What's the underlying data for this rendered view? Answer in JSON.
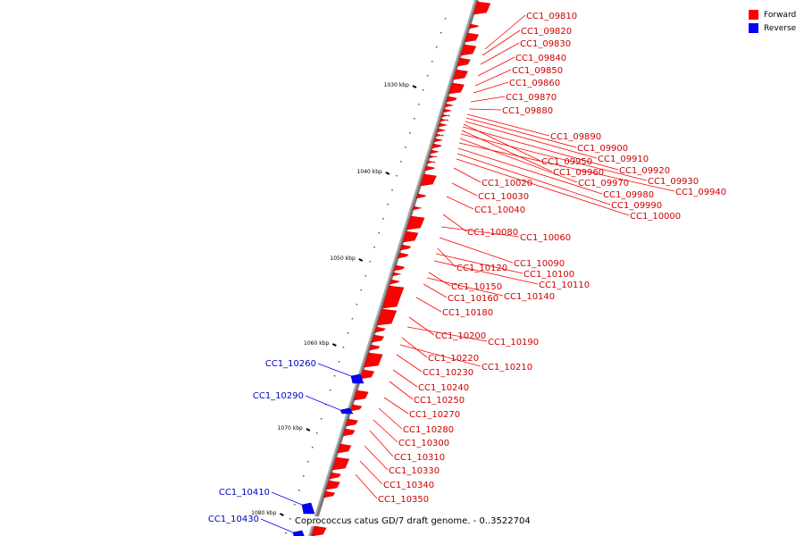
{
  "legend": {
    "forward": {
      "label": "Forward",
      "color": "#ff0000"
    },
    "reverse": {
      "label": "Reverse",
      "color": "#0000ff"
    }
  },
  "caption": "Coprococcus catus GD/7 draft genome. - 0..3522704",
  "ticks": [
    "1030 kbp",
    "1040 kbp",
    "1050 kbp",
    "1060 kbp",
    "1070 kbp",
    "1080 kbp"
  ],
  "forward_genes": [
    "CC1_09810",
    "CC1_09820",
    "CC1_09830",
    "CC1_09840",
    "CC1_09850",
    "CC1_09860",
    "CC1_09870",
    "CC1_09880",
    "CC1_09890",
    "CC1_09900",
    "CC1_09910",
    "CC1_09950",
    "CC1_09920",
    "CC1_09960",
    "CC1_09930",
    "CC1_09970",
    "CC1_09940",
    "CC1_09980",
    "CC1_09990",
    "CC1_10000",
    "CC1_10020",
    "CC1_10030",
    "CC1_10040",
    "CC1_10080",
    "CC1_10060",
    "CC1_10090",
    "CC1_10120",
    "CC1_10100",
    "CC1_10110",
    "CC1_10150",
    "CC1_10140",
    "CC1_10160",
    "CC1_10180",
    "CC1_10200",
    "CC1_10190",
    "CC1_10220",
    "CC1_10210",
    "CC1_10230",
    "CC1_10240",
    "CC1_10250",
    "CC1_10270",
    "CC1_10280",
    "CC1_10300",
    "CC1_10310",
    "CC1_10330",
    "CC1_10340",
    "CC1_10350"
  ],
  "reverse_genes": [
    "CC1_10260",
    "CC1_10290",
    "CC1_10410",
    "CC1_10430"
  ]
}
